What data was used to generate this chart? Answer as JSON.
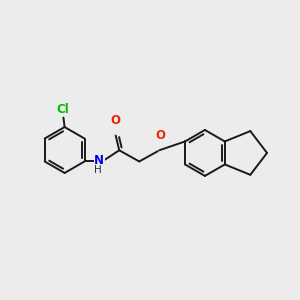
{
  "background_color": "#ececec",
  "bond_color": "#1a1a1a",
  "atom_colors": {
    "Cl": "#00bb00",
    "O": "#ee2200",
    "N": "#0000ee"
  },
  "figsize": [
    3.0,
    3.0
  ],
  "dpi": 100,
  "xlim": [
    0,
    10
  ],
  "ylim": [
    1,
    9
  ]
}
